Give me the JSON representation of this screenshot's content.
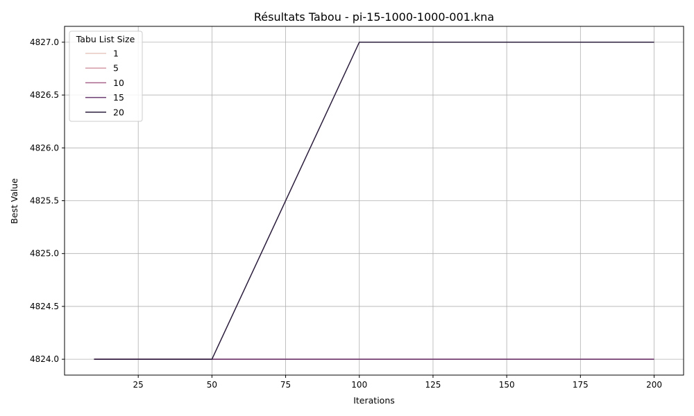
{
  "chart_data": {
    "type": "line",
    "title": "Résultats Tabou - pi-15-1000-1000-001.kna",
    "xlabel": "Iterations",
    "ylabel": "Best Value",
    "xlim": [
      0,
      210
    ],
    "ylim": [
      4823.85,
      4827.15
    ],
    "xticks": [
      25,
      50,
      75,
      100,
      125,
      150,
      175,
      200
    ],
    "yticks": [
      4824.0,
      4824.5,
      4825.0,
      4825.5,
      4826.0,
      4826.5,
      4827.0
    ],
    "grid": true,
    "legend": {
      "title": "Tabu List Size",
      "placement": "top-left"
    },
    "x": [
      10,
      50,
      100,
      200
    ],
    "series": [
      {
        "name": "1",
        "color": "#e9c9c1",
        "values": [
          4824,
          4824,
          4824,
          4824
        ]
      },
      {
        "name": "5",
        "color": "#d49aa7",
        "values": [
          4824,
          4824,
          4824,
          4824
        ]
      },
      {
        "name": "10",
        "color": "#a8658e",
        "values": [
          4824,
          4824,
          4824,
          4824
        ]
      },
      {
        "name": "15",
        "color": "#6b3a70",
        "values": [
          4824,
          4824,
          4824,
          4824
        ]
      },
      {
        "name": "20",
        "color": "#2b1d3c",
        "values": [
          4824,
          4824,
          4827,
          4827
        ]
      }
    ]
  }
}
